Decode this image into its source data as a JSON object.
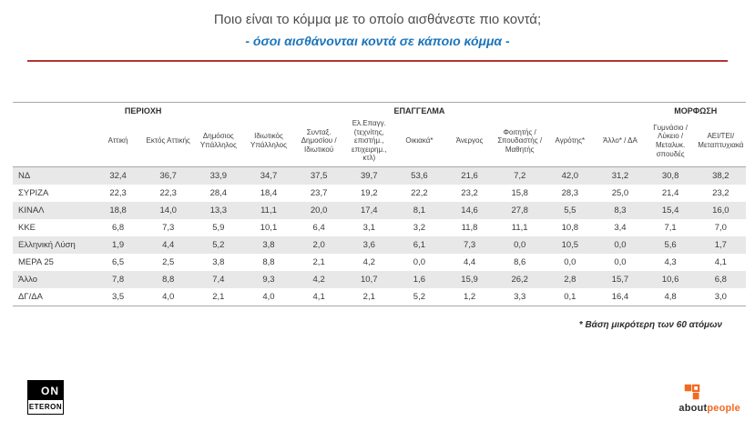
{
  "accent": {
    "subtitle_blue": "#1b75bb",
    "divider_red": "#b23431",
    "stripe_gray": "#e8e8e8",
    "brand_orange": "#f26a21"
  },
  "header": {
    "title": "Ποιο είναι το κόμμα με το οποίο αισθάνεστε πιο κοντά;",
    "subtitle": "- όσοι αισθάνονται κοντά σε κάποιο κόμμα -"
  },
  "chart_data": {
    "type": "table",
    "title": "Ποιο είναι το κόμμα με το οποίο αισθάνεστε πιο κοντά;",
    "subtitle": "- όσοι αισθάνονται κοντά σε κάποιο κόμμα -",
    "decimal_separator": ",",
    "column_groups": [
      {
        "label": "",
        "span": 1
      },
      {
        "label": "ΠΕΡΙΟΧΗ",
        "span": 2
      },
      {
        "label": "ΕΠΑΓΓΕΛΜΑ",
        "span": 9
      },
      {
        "label": "ΜΟΡΦΩΣΗ",
        "span": 2
      }
    ],
    "columns": [
      "Αττική",
      "Εκτός Αττικής",
      "Δημόσιος Υπάλληλος",
      "Ιδιωτικός Υπάλληλος",
      "Συνταξ. Δημοσίου / Ιδιωτικού",
      "Ελ.Επαγγ. (τεχνίτης, επιστήμ., επιχειρημ., κτλ)",
      "Οικιακά*",
      "Άνεργος",
      "Φοιτητής / Σπουδαστής / Μαθητής",
      "Αγρότης*",
      "Άλλο* / ΔΑ",
      "Γυμνάσιο / Λύκειο / Μεταλυκ. σπουδές",
      "ΑΕΙ/ΤΕΙ/ Μεταπτυχιακά"
    ],
    "rows": [
      {
        "label": "ΝΔ",
        "values": [
          32.4,
          36.7,
          33.9,
          34.7,
          37.5,
          39.7,
          53.6,
          21.6,
          7.2,
          42.0,
          31.2,
          30.8,
          38.2
        ]
      },
      {
        "label": "ΣΥΡΙΖΑ",
        "values": [
          22.3,
          22.3,
          28.4,
          18.4,
          23.7,
          19.2,
          22.2,
          23.2,
          15.8,
          28.3,
          25.0,
          21.4,
          23.2
        ]
      },
      {
        "label": "ΚΙΝΑΛ",
        "values": [
          18.8,
          14.0,
          13.3,
          11.1,
          20.0,
          17.4,
          8.1,
          14.6,
          27.8,
          5.5,
          8.3,
          15.4,
          16.0
        ]
      },
      {
        "label": "ΚΚΕ",
        "values": [
          6.8,
          7.3,
          5.9,
          10.1,
          6.4,
          3.1,
          3.2,
          11.8,
          11.1,
          10.8,
          3.4,
          7.1,
          7.0
        ]
      },
      {
        "label": "Ελληνική Λύση",
        "values": [
          1.9,
          4.4,
          5.2,
          3.8,
          2.0,
          3.6,
          6.1,
          7.3,
          0.0,
          10.5,
          0.0,
          5.6,
          1.7
        ]
      },
      {
        "label": "ΜΕΡΑ 25",
        "values": [
          6.5,
          2.5,
          3.8,
          8.8,
          2.1,
          4.2,
          0.0,
          4.4,
          8.6,
          0.0,
          0.0,
          4.3,
          4.1
        ]
      },
      {
        "label": "Άλλο",
        "values": [
          7.8,
          8.8,
          7.4,
          9.3,
          4.2,
          10.7,
          1.6,
          15.9,
          26.2,
          2.8,
          15.7,
          10.6,
          6.8
        ]
      },
      {
        "label": "ΔΓ/ΔΑ",
        "values": [
          3.5,
          4.0,
          2.1,
          4.0,
          4.1,
          2.1,
          5.2,
          1.2,
          3.3,
          0.1,
          16.4,
          4.8,
          3.0
        ]
      }
    ]
  },
  "footnote": "* Βάση μικρότερη των 60 ατόμων",
  "logos": {
    "eteron": {
      "top": "ON",
      "bottom": "ETERON"
    },
    "aboutpeople": {
      "part1": "about",
      "part2": "people"
    }
  }
}
